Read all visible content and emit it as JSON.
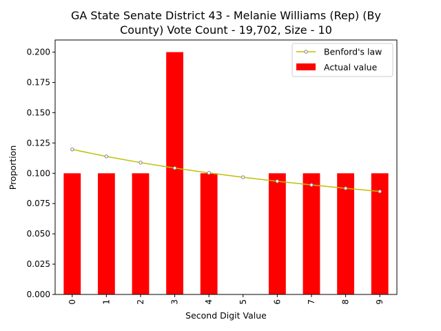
{
  "chart_data": {
    "type": "bar",
    "title_lines": [
      "GA State Senate District 43 - Melanie Williams (Rep) (By",
      "County) Vote Count - 19,702, Size - 10"
    ],
    "xlabel": "Second Digit Value",
    "ylabel": "Proportion",
    "categories": [
      "0",
      "1",
      "2",
      "3",
      "4",
      "5",
      "6",
      "7",
      "8",
      "9"
    ],
    "y_ticks": [
      "0.000",
      "0.025",
      "0.050",
      "0.075",
      "0.100",
      "0.125",
      "0.150",
      "0.175",
      "0.200"
    ],
    "ylim": [
      0,
      0.21
    ],
    "grid": false,
    "legend_position": "top-right",
    "series": [
      {
        "name": "Actual value",
        "kind": "bar",
        "color": "#ff0000",
        "values": [
          0.1,
          0.1,
          0.1,
          0.2,
          0.1,
          0.0,
          0.1,
          0.1,
          0.1,
          0.1
        ]
      },
      {
        "name": "Benford's law",
        "kind": "line",
        "color": "#bfbf00",
        "marker_color": "#808080",
        "values": [
          0.1197,
          0.1139,
          0.1088,
          0.1043,
          0.1003,
          0.0967,
          0.0934,
          0.0904,
          0.0876,
          0.085
        ]
      }
    ]
  }
}
